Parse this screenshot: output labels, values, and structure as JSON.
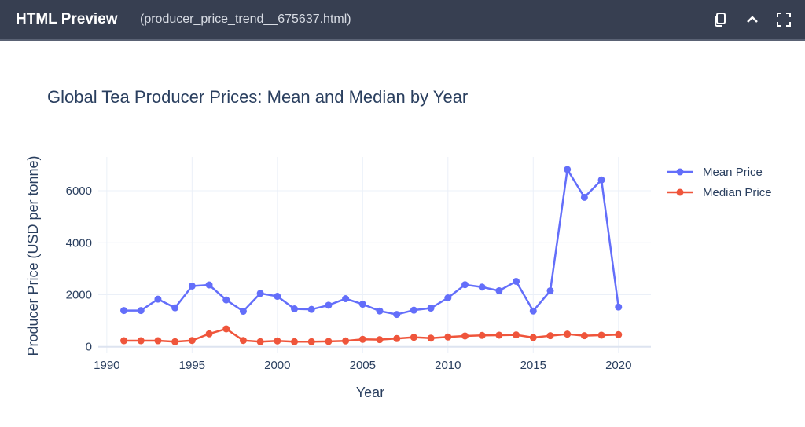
{
  "header": {
    "title": "HTML Preview",
    "filename": "(producer_price_trend__675637.html)"
  },
  "chart_data": {
    "type": "line",
    "title": "Global Tea Producer Prices: Mean and Median by Year",
    "xlabel": "Year",
    "ylabel": "Producer Price (USD per tonne)",
    "xlim": [
      1989.5,
      2021.9
    ],
    "ylim": [
      -250,
      7300
    ],
    "xticks": [
      1990,
      1995,
      2000,
      2005,
      2010,
      2015,
      2020
    ],
    "yticks": [
      0,
      2000,
      4000,
      6000
    ],
    "grid": true,
    "legend_position": "top-right-outside",
    "x": [
      1991,
      1992,
      1993,
      1994,
      1995,
      1996,
      1997,
      1998,
      1999,
      2000,
      2001,
      2002,
      2003,
      2004,
      2005,
      2006,
      2007,
      2008,
      2009,
      2010,
      2011,
      2012,
      2013,
      2014,
      2015,
      2016,
      2017,
      2018,
      2019,
      2020
    ],
    "series": [
      {
        "name": "Mean Price",
        "color": "#636efa",
        "values": [
          1394,
          1394,
          1830,
          1497,
          2333,
          2376,
          1800,
          1364,
          2051,
          1939,
          1455,
          1436,
          1597,
          1848,
          1636,
          1375,
          1242,
          1406,
          1485,
          1879,
          2385,
          2294,
          2152,
          2515,
          1375,
          2152,
          6818,
          5748,
          6415,
          1527
        ]
      },
      {
        "name": "Median Price",
        "color": "#ef553b",
        "values": [
          233,
          233,
          233,
          194,
          242,
          497,
          688,
          242,
          194,
          224,
          194,
          194,
          205,
          224,
          285,
          274,
          315,
          364,
          333,
          376,
          415,
          436,
          445,
          455,
          354,
          424,
          485,
          424,
          445,
          466
        ]
      }
    ]
  }
}
